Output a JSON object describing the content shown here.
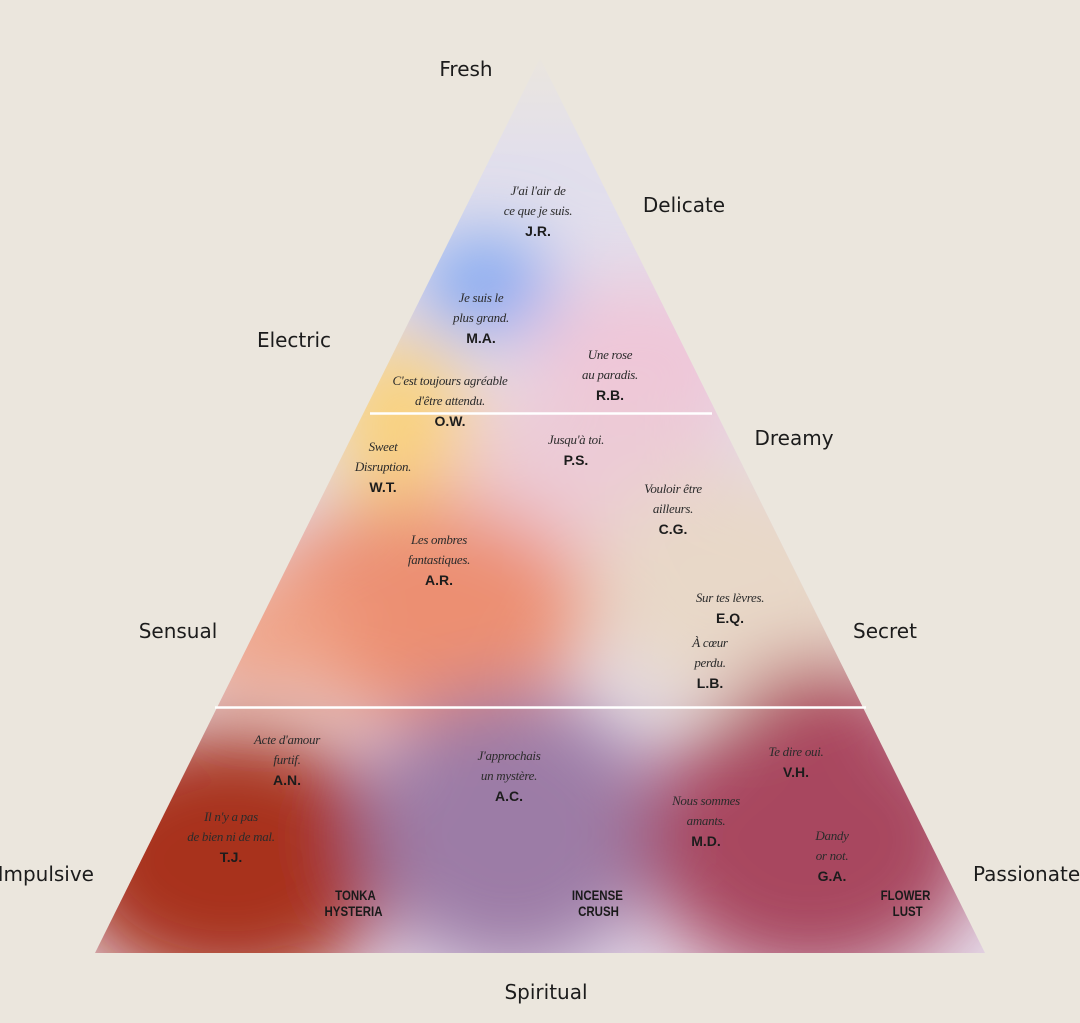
{
  "axes": {
    "top": "Fresh",
    "upper_right": "Delicate",
    "upper_left": "Electric",
    "middle_right": "Dreamy",
    "left": "Sensual",
    "right": "Secret",
    "bottom_left": "Impulsive",
    "bottom_right": "Passionate",
    "bottom": "Spiritual"
  },
  "entries": [
    {
      "quote": [
        "J'ai l'air de",
        "ce que je suis."
      ],
      "initials": "J.R."
    },
    {
      "quote": [
        "Je suis le",
        "plus grand."
      ],
      "initials": "M.A."
    },
    {
      "quote": [
        "Une rose",
        "au paradis."
      ],
      "initials": "R.B."
    },
    {
      "quote": [
        "C'est toujours agréable",
        "d'être attendu."
      ],
      "initials": "O.W."
    },
    {
      "quote": [
        "Jusqu'à toi."
      ],
      "initials": "P.S."
    },
    {
      "quote": [
        "Sweet",
        "Disruption."
      ],
      "initials": "W.T."
    },
    {
      "quote": [
        "Vouloir être",
        "ailleurs."
      ],
      "initials": "C.G."
    },
    {
      "quote": [
        "Les ombres",
        "fantastiques."
      ],
      "initials": "A.R."
    },
    {
      "quote": [
        "Sur tes lèvres."
      ],
      "initials": "E.Q."
    },
    {
      "quote": [
        "À cœur",
        "perdu."
      ],
      "initials": "L.B."
    },
    {
      "quote": [
        "Acte d'amour",
        "furtif."
      ],
      "initials": "A.N."
    },
    {
      "quote": [
        "J'approchais",
        "un mystère."
      ],
      "initials": "A.C."
    },
    {
      "quote": [
        "Te dire oui."
      ],
      "initials": "V.H."
    },
    {
      "quote": [
        "Il n'y a pas",
        "de bien ni de mal."
      ],
      "initials": "T.J."
    },
    {
      "quote": [
        "Nous sommes",
        "amants."
      ],
      "initials": "M.D."
    },
    {
      "quote": [
        "Dandy",
        "or not."
      ],
      "initials": "G.A."
    }
  ],
  "products": [
    {
      "lines": [
        "TONKA",
        "HYSTERIA"
      ]
    },
    {
      "lines": [
        "INCENSE",
        "CRUSH"
      ]
    },
    {
      "lines": [
        "FLOWER",
        "LUST"
      ]
    }
  ]
}
